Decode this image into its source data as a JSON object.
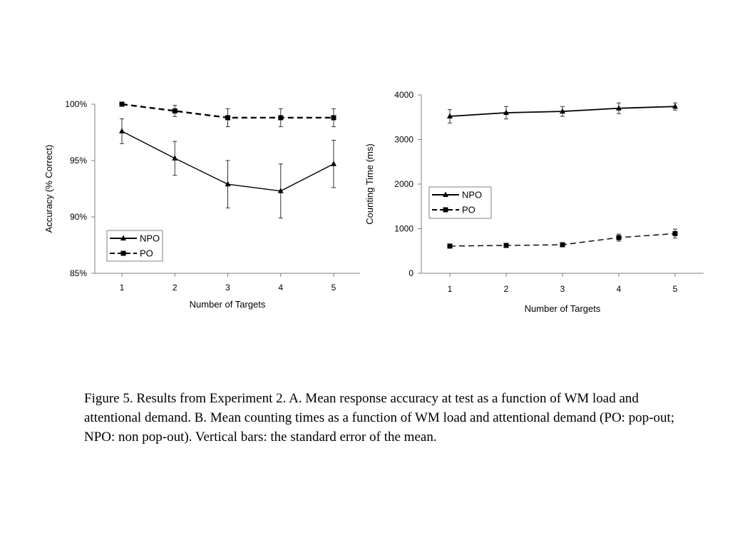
{
  "chart_data": [
    {
      "type": "line",
      "panel": "A",
      "xlabel": "Number of Targets",
      "ylabel": "Accuracy (% Correct)",
      "categories": [
        "1",
        "2",
        "3",
        "4",
        "5"
      ],
      "ylim": [
        0.85,
        1.0
      ],
      "y_ticks": [
        "85%",
        "90%",
        "95%",
        "100%"
      ],
      "y_tick_values": [
        0.85,
        0.9,
        0.95,
        1.0
      ],
      "legend_position": "bottom-left",
      "grid": false,
      "series": [
        {
          "name": "NPO",
          "style": "solid",
          "marker": "triangle",
          "values": [
            0.976,
            0.952,
            0.929,
            0.923,
            0.947
          ],
          "errors": [
            0.011,
            0.015,
            0.021,
            0.024,
            0.021
          ]
        },
        {
          "name": "PO",
          "style": "dashed",
          "marker": "square",
          "values": [
            1.0,
            0.994,
            0.988,
            0.988,
            0.988
          ],
          "errors": [
            0.0,
            0.005,
            0.008,
            0.008,
            0.008
          ]
        }
      ]
    },
    {
      "type": "line",
      "panel": "B",
      "xlabel": "Number of Targets",
      "ylabel": "Counting Time (ms)",
      "categories": [
        "1",
        "2",
        "3",
        "4",
        "5"
      ],
      "ylim": [
        0,
        4000
      ],
      "y_ticks": [
        "0",
        "1000",
        "2000",
        "3000",
        "4000"
      ],
      "y_tick_values": [
        0,
        1000,
        2000,
        3000,
        4000
      ],
      "legend_position": "center-left",
      "grid": false,
      "series": [
        {
          "name": "NPO",
          "style": "solid",
          "marker": "triangle",
          "values": [
            3520,
            3600,
            3630,
            3700,
            3740
          ],
          "errors": [
            150,
            140,
            110,
            120,
            80
          ]
        },
        {
          "name": "PO",
          "style": "dashed",
          "marker": "square",
          "values": [
            610,
            625,
            640,
            800,
            890
          ],
          "errors": [
            30,
            30,
            30,
            80,
            100
          ]
        }
      ]
    }
  ],
  "caption": "Figure 5. Results from Experiment 2. A. Mean response accuracy at test as a function of WM load and attentional demand. B. Mean counting times as a function of WM load and attentional demand (PO: pop-out; NPO: non pop-out). Vertical bars: the standard error of the mean."
}
